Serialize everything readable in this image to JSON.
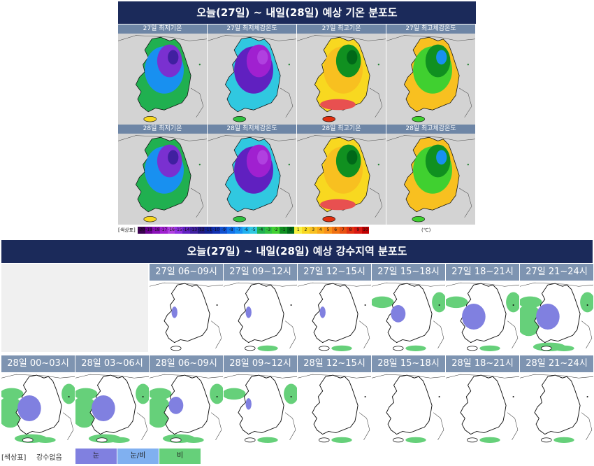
{
  "temperature_panel": {
    "title": "오늘(27일) ~ 내일(28일) 예상 기온 분포도",
    "maps": [
      {
        "label": "27일 최저기온",
        "scheme": "cold"
      },
      {
        "label": "27일 최저체감온도",
        "scheme": "colder"
      },
      {
        "label": "27일 최고기온",
        "scheme": "warm"
      },
      {
        "label": "27일 최고체감온도",
        "scheme": "mild"
      },
      {
        "label": "28일 최저기온",
        "scheme": "cold"
      },
      {
        "label": "28일 최저체감온도",
        "scheme": "colder"
      },
      {
        "label": "28일 최고기온",
        "scheme": "warm"
      },
      {
        "label": "28일 최고체감온도",
        "scheme": "mild"
      }
    ],
    "color_scale": {
      "label": "[색상표]",
      "unit": "(℃)",
      "values": [
        "-20",
        "-19",
        "-18",
        "-17",
        "-16",
        "-15",
        "-14",
        "-13",
        "-12",
        "-11",
        "-10",
        "-9",
        "-8",
        "-7",
        "-6",
        "-5",
        "-4",
        "-3",
        "-2",
        "-1",
        "0",
        "1",
        "2",
        "3",
        "4",
        "5",
        "6",
        "7",
        "8",
        "9",
        "10"
      ],
      "colors": [
        "#3a0050",
        "#6a0090",
        "#8a10b8",
        "#a020d0",
        "#b040e0",
        "#9030e0",
        "#6020c0",
        "#4020a0",
        "#201880",
        "#102090",
        "#1030b0",
        "#1050d0",
        "#1070e8",
        "#1890f0",
        "#20b0f0",
        "#30c8e0",
        "#20b050",
        "#30c040",
        "#40d030",
        "#109020",
        "#006818",
        "#f8f040",
        "#f8d820",
        "#f8c020",
        "#f8a818",
        "#f89018",
        "#f07010",
        "#e85010",
        "#e03010",
        "#d81810",
        "#c00000"
      ]
    }
  },
  "precipitation_panel": {
    "title": "오늘(27일) ~ 내일(28일) 예상 강수지역 분포도",
    "row1": [
      {
        "label": "27일 06~09시",
        "rain": 0,
        "snow": 1
      },
      {
        "label": "27일 09~12시",
        "rain": 1,
        "snow": 1
      },
      {
        "label": "27일 12~15시",
        "rain": 1,
        "snow": 1
      },
      {
        "label": "27일 15~18시",
        "rain": 2,
        "snow": 2
      },
      {
        "label": "27일 18~21시",
        "rain": 2,
        "snow": 3
      },
      {
        "label": "27일 21~24시",
        "rain": 3,
        "snow": 3
      }
    ],
    "row2": [
      {
        "label": "28일 00~03시",
        "rain": 3,
        "snow": 3
      },
      {
        "label": "28일 03~06시",
        "rain": 3,
        "snow": 3
      },
      {
        "label": "28일 06~09시",
        "rain": 3,
        "snow": 2
      },
      {
        "label": "28일 09~12시",
        "rain": 2,
        "snow": 1
      },
      {
        "label": "28일 12~15시",
        "rain": 1,
        "snow": 0
      },
      {
        "label": "28일 15~18시",
        "rain": 1,
        "snow": 0
      },
      {
        "label": "28일 18~21시",
        "rain": 1,
        "snow": 0
      },
      {
        "label": "28일 21~24시",
        "rain": 1,
        "snow": 0
      }
    ],
    "legend": {
      "title": "[색상표]",
      "none": "강수없음",
      "items": [
        {
          "label": "눈",
          "color": "#8080e0"
        },
        {
          "label": "눈/비",
          "color": "#80b0f0"
        },
        {
          "label": "비",
          "color": "#66d07a"
        }
      ]
    }
  }
}
